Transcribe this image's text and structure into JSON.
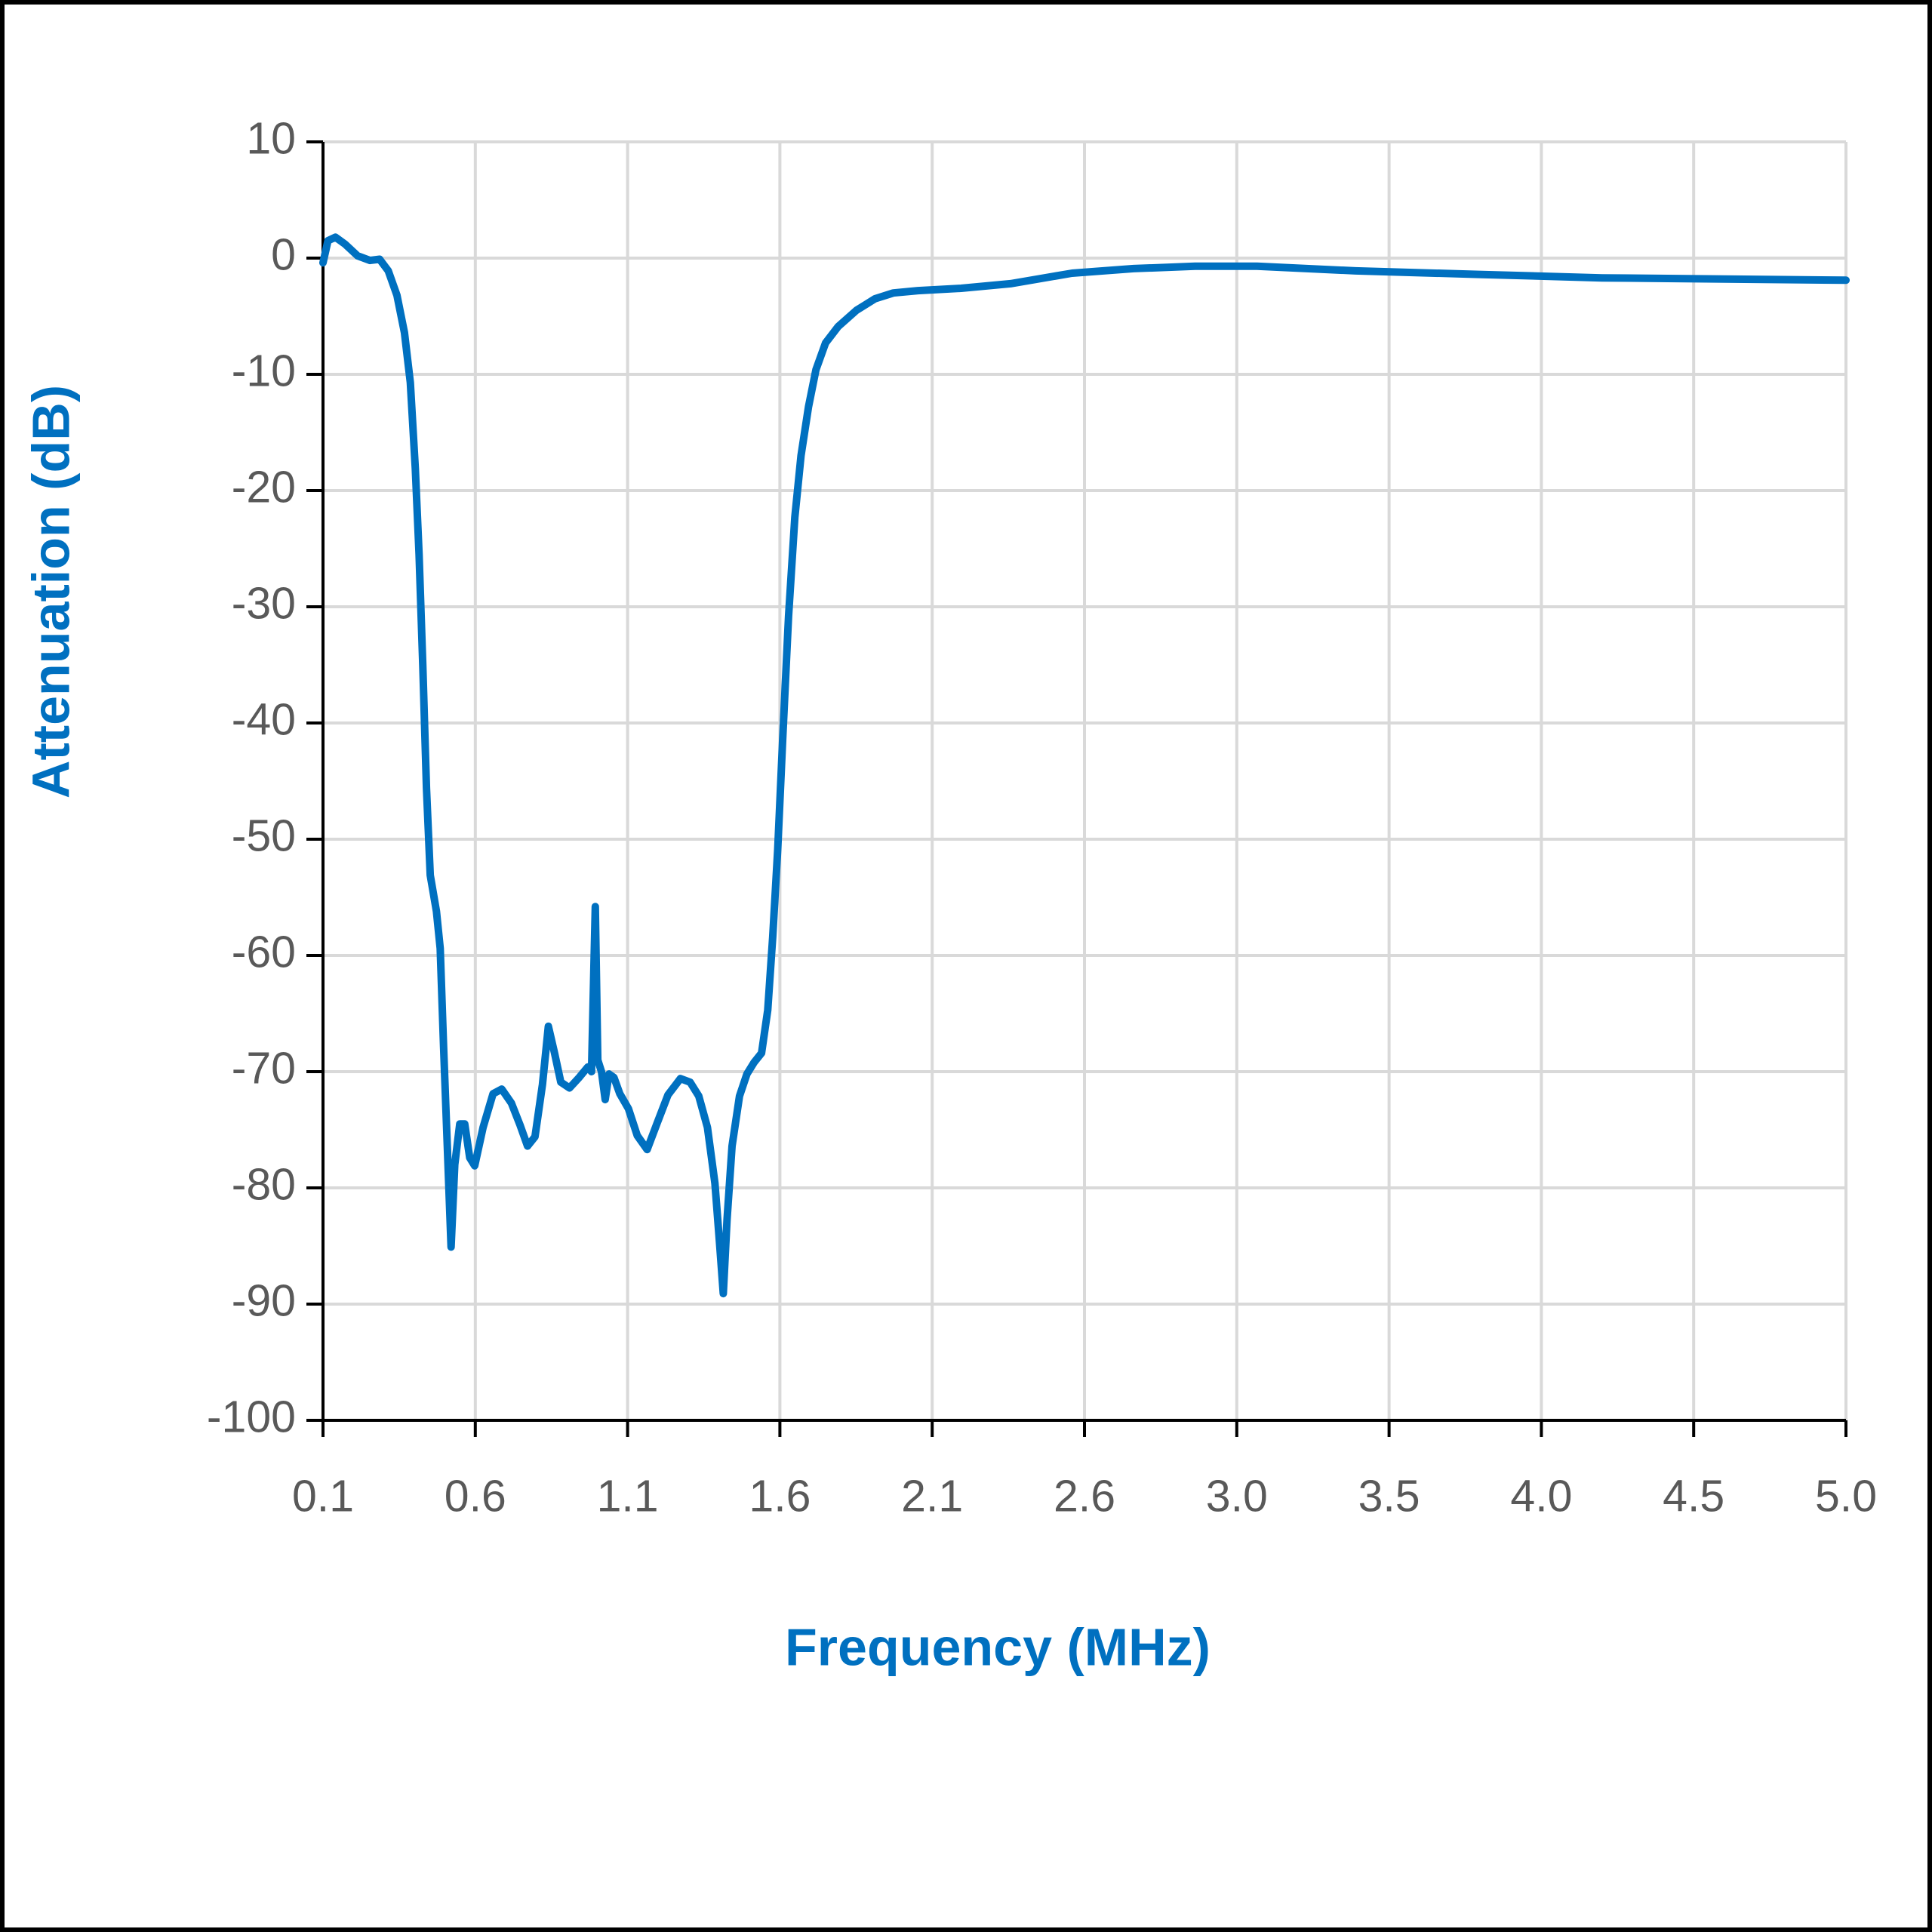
{
  "chart_data": {
    "type": "line",
    "x_label": "Frequency (MHz)",
    "y_label": "Attenuation (dB)",
    "color": "#0070c0",
    "grid": true,
    "xlim": [
      0.1,
      5.0
    ],
    "xticks": [
      0.1,
      {
        "value": 0.59,
        "label": "0.6"
      },
      {
        "value": 1.08,
        "label": "1.1"
      },
      {
        "value": 1.57,
        "label": "1.6"
      },
      {
        "value": 2.06,
        "label": "2.1"
      },
      {
        "value": 2.55,
        "label": "2.6"
      },
      {
        "value": 3.04,
        "label": "3.0"
      },
      {
        "value": 3.53,
        "label": "3.5"
      },
      {
        "value": 4.02,
        "label": "4.0"
      },
      {
        "value": 4.51,
        "label": "4.5"
      },
      {
        "value": 5.0,
        "label": "5.0"
      }
    ],
    "ylim": [
      -100,
      10
    ],
    "yticks": [
      -100,
      -90,
      -80,
      -70,
      -60,
      -50,
      -40,
      -30,
      -20,
      -10,
      0,
      10
    ],
    "x": [
      0.1,
      0.116,
      0.14,
      0.171,
      0.211,
      0.251,
      0.282,
      0.31,
      0.338,
      0.362,
      0.381,
      0.397,
      0.409,
      0.421,
      0.433,
      0.445,
      0.465,
      0.477,
      0.488,
      0.5,
      0.512,
      0.524,
      0.54,
      0.556,
      0.572,
      0.588,
      0.615,
      0.647,
      0.675,
      0.706,
      0.734,
      0.758,
      0.782,
      0.806,
      0.825,
      0.845,
      0.865,
      0.893,
      0.924,
      0.952,
      0.964,
      0.976,
      0.984,
      0.996,
      1.008,
      1.02,
      1.036,
      1.055,
      1.083,
      1.111,
      1.143,
      1.174,
      1.21,
      1.25,
      1.281,
      1.309,
      1.337,
      1.361,
      1.376,
      1.388,
      1.4,
      1.416,
      1.44,
      1.464,
      1.487,
      1.511,
      1.531,
      1.547,
      1.563,
      1.579,
      1.598,
      1.618,
      1.638,
      1.662,
      1.686,
      1.717,
      1.757,
      1.816,
      1.876,
      1.935,
      2.014,
      2.153,
      2.312,
      2.51,
      2.708,
      2.906,
      3.105,
      3.422,
      3.818,
      4.215,
      4.611,
      5.0
    ],
    "values": [
      -0.4,
      1.5,
      1.8,
      1.2,
      0.2,
      -0.2,
      -0.1,
      -1.1,
      -3.2,
      -6.4,
      -10.7,
      -18.1,
      -25.5,
      -35.0,
      -45.6,
      -53.1,
      -56.2,
      -59.4,
      -67.9,
      -76.4,
      -85.1,
      -78.0,
      -74.5,
      -74.5,
      -77.4,
      -78.1,
      -74.8,
      -71.9,
      -71.5,
      -72.7,
      -74.6,
      -76.4,
      -75.6,
      -71.1,
      -66.1,
      -68.4,
      -70.9,
      -71.4,
      -70.5,
      -69.6,
      -70.0,
      -55.8,
      -69.0,
      -70.0,
      -72.4,
      -70.2,
      -70.5,
      -71.9,
      -73.2,
      -75.5,
      -76.7,
      -74.5,
      -72.0,
      -70.6,
      -70.9,
      -72.1,
      -74.8,
      -79.6,
      -84.8,
      -89.1,
      -82.7,
      -76.4,
      -72.1,
      -70.2,
      -69.2,
      -68.4,
      -64.7,
      -58.4,
      -50.9,
      -41.4,
      -30.8,
      -22.3,
      -17.0,
      -12.8,
      -9.6,
      -7.3,
      -5.9,
      -4.5,
      -3.5,
      -3.0,
      -2.8,
      -2.6,
      -2.2,
      -1.3,
      -0.9,
      -0.7,
      -0.7,
      -1.1,
      -1.4,
      -1.7,
      -1.8,
      -1.9
    ]
  }
}
